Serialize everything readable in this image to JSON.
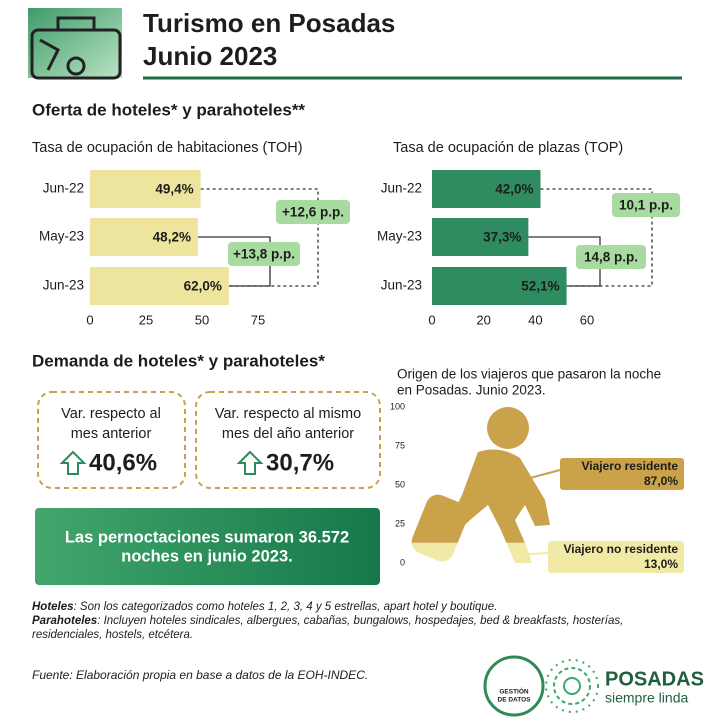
{
  "header": {
    "title_line1": "Turismo en Posadas",
    "title_line2": "Junio 2023"
  },
  "supply_heading": "Oferta de hoteles* y parahoteles**",
  "chart_data": [
    {
      "type": "hbar",
      "title": "Tasa de ocupación de habitaciones (TOH)",
      "categories": [
        "Jun-22",
        "May-23",
        "Jun-23"
      ],
      "values": [
        49.4,
        48.2,
        62.0
      ],
      "value_labels": [
        "49,4%",
        "48,2%",
        "62,0%"
      ],
      "color": "#ede59e",
      "xlim": [
        0,
        75
      ],
      "xticks": [
        0,
        25,
        50,
        75
      ],
      "annotations": [
        "+12,6 p.p.",
        "+13,8 p.p."
      ]
    },
    {
      "type": "hbar",
      "title": "Tasa de ocupación de plazas (TOP)",
      "categories": [
        "Jun-22",
        "May-23",
        "Jun-23"
      ],
      "values": [
        42.0,
        37.3,
        52.1
      ],
      "value_labels": [
        "42,0%",
        "37,3%",
        "52,1%"
      ],
      "color": "#2f8c60",
      "xlim": [
        0,
        60
      ],
      "xticks": [
        0,
        20,
        40,
        60
      ],
      "annotations": [
        "10,1 p.p.",
        "14,8 p.p."
      ]
    },
    {
      "type": "pictogram",
      "title_lines": [
        "Origen de los viajeros que pasaron la noche",
        "en Posadas. Junio 2023."
      ],
      "ylim": [
        0,
        100
      ],
      "yticks": [
        0,
        25,
        50,
        75,
        100
      ],
      "series": [
        {
          "name": "Viajero residente",
          "color": "#c9a24a",
          "values": [
            87.0
          ],
          "value_labels": [
            "87,0%"
          ]
        },
        {
          "name": "Viajero no residente",
          "color": "#f1e9a6",
          "values": [
            13.0
          ],
          "value_labels": [
            "13,0%"
          ]
        }
      ]
    }
  ],
  "demand": {
    "heading": "Demanda de hoteles* y parahoteles*",
    "cards": [
      {
        "label_lines": [
          "Var. respecto al",
          "mes anterior"
        ],
        "value": "40,6%"
      },
      {
        "label_lines": [
          "Var. respecto al mismo",
          "mes del año anterior"
        ],
        "value": "30,7%"
      }
    ],
    "banner_lines": [
      "Las pernoctaciones sumaron 36.572",
      "noches en junio 2023."
    ]
  },
  "notes": [
    {
      "term": "Hoteles",
      "lines": [
        ": Son los categorizados como hoteles 1, 2, 3, 4 y 5 estrellas, apart hotel y boutique."
      ]
    },
    {
      "term": "Parahoteles",
      "lines": [
        ": Incluyen hoteles sindicales, albergues, cabañas, bungalows, hospedajes, bed & breakfasts, hosterías,",
        "residenciales, hostels, etcétera."
      ]
    }
  ],
  "footer": {
    "source": "Fuente: Elaboración propia en base a datos de la EOH-INDEC.",
    "logo1_lines": [
      "GESTIÓN",
      "DE DATOS"
    ],
    "logo2_title": "POSADAS",
    "logo2_subtitle": "siempre linda"
  }
}
